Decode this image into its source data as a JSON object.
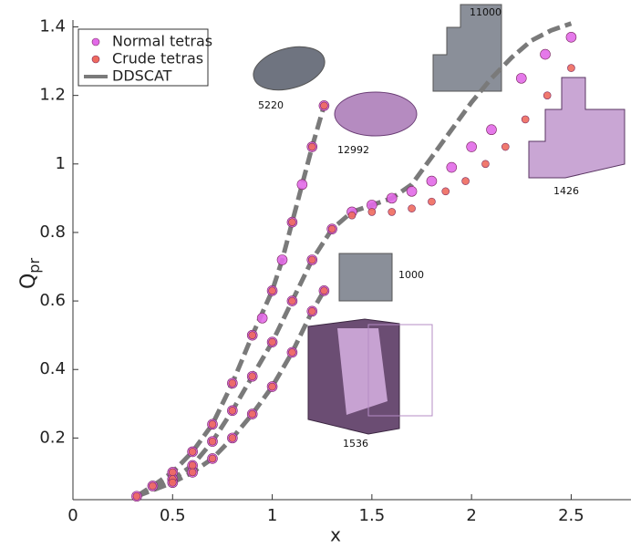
{
  "chart_data": {
    "type": "scatter-line",
    "xlabel": "x",
    "ylabel": {
      "base": "Q",
      "sub": "pr"
    },
    "xlim": [
      0,
      2.8
    ],
    "ylim": [
      0.02,
      1.42
    ],
    "xticks": [
      0,
      0.5,
      1,
      1.5,
      2,
      2.5
    ],
    "yticks": [
      0.2,
      0.4,
      0.6,
      0.8,
      1,
      1.2,
      1.4
    ],
    "legend": "upper-left",
    "annotations": [
      "5220",
      "12992",
      "11000",
      "1426",
      "1000",
      "1536"
    ],
    "series": [
      {
        "name": "Normal tetras",
        "kind": "marker",
        "color": "#e26ae8",
        "x": [
          0.32,
          0.4,
          0.5,
          0.6,
          0.7,
          0.8,
          0.9,
          0.95,
          1.0,
          1.05,
          1.1,
          1.15,
          1.2,
          1.26,
          0.5,
          0.6,
          0.7,
          0.8,
          0.9,
          1.0,
          1.1,
          1.2,
          1.3,
          1.4,
          1.5,
          1.6,
          1.7,
          1.8,
          1.9,
          2.0,
          2.1,
          2.25,
          2.37,
          2.5,
          0.5,
          0.6,
          0.7,
          0.8,
          0.9,
          1.0,
          1.1,
          1.2,
          1.26
        ],
        "values": [
          0.03,
          0.06,
          0.1,
          0.16,
          0.24,
          0.36,
          0.5,
          0.55,
          0.63,
          0.72,
          0.83,
          0.94,
          1.05,
          1.17,
          0.08,
          0.12,
          0.19,
          0.28,
          0.38,
          0.48,
          0.6,
          0.72,
          0.81,
          0.86,
          0.88,
          0.9,
          0.92,
          0.95,
          0.99,
          1.05,
          1.1,
          1.25,
          1.32,
          1.37,
          0.07,
          0.1,
          0.14,
          0.2,
          0.27,
          0.35,
          0.45,
          0.57,
          0.63
        ]
      },
      {
        "name": "Crude tetras",
        "kind": "marker",
        "color": "#ee6a5e",
        "x": [
          0.32,
          0.4,
          0.5,
          0.6,
          0.7,
          0.8,
          0.9,
          1.0,
          1.1,
          1.2,
          1.26,
          0.5,
          0.6,
          0.7,
          0.8,
          0.9,
          1.0,
          1.1,
          1.2,
          1.3,
          1.4,
          1.5,
          1.6,
          1.7,
          1.8,
          1.87,
          1.97,
          2.07,
          2.17,
          2.27,
          2.38,
          2.5,
          0.5,
          0.6,
          0.7,
          0.8,
          0.9,
          1.0,
          1.1,
          1.2,
          1.26
        ],
        "values": [
          0.03,
          0.06,
          0.1,
          0.16,
          0.24,
          0.36,
          0.5,
          0.63,
          0.83,
          1.05,
          1.17,
          0.08,
          0.12,
          0.19,
          0.28,
          0.38,
          0.48,
          0.6,
          0.72,
          0.81,
          0.85,
          0.86,
          0.86,
          0.87,
          0.89,
          0.92,
          0.95,
          1.0,
          1.05,
          1.13,
          1.2,
          1.28,
          0.07,
          0.1,
          0.14,
          0.2,
          0.27,
          0.35,
          0.45,
          0.57,
          0.63
        ]
      },
      {
        "name": "DDSCAT",
        "kind": "line",
        "color": "#7a7a7a",
        "x": [
          0.32,
          0.4,
          0.5,
          0.6,
          0.7,
          0.8,
          0.9,
          1.0,
          1.05,
          1.1,
          1.15,
          1.2,
          1.26,
          null,
          0.32,
          0.5,
          0.6,
          0.7,
          0.8,
          0.9,
          1.0,
          1.1,
          1.2,
          1.3,
          1.4,
          1.5,
          1.6,
          1.7,
          1.8,
          1.9,
          2.0,
          2.1,
          2.2,
          2.3,
          2.4,
          2.5,
          null,
          0.32,
          0.5,
          0.6,
          0.7,
          0.8,
          0.9,
          1.0,
          1.1,
          1.2,
          1.26
        ],
        "values": [
          0.03,
          0.06,
          0.1,
          0.16,
          0.24,
          0.36,
          0.5,
          0.63,
          0.72,
          0.83,
          0.94,
          1.05,
          1.17,
          null,
          0.03,
          0.08,
          0.12,
          0.19,
          0.28,
          0.38,
          0.48,
          0.6,
          0.72,
          0.81,
          0.86,
          0.88,
          0.9,
          0.94,
          1.02,
          1.1,
          1.18,
          1.25,
          1.31,
          1.36,
          1.39,
          1.41,
          null,
          0.03,
          0.07,
          0.1,
          0.14,
          0.2,
          0.27,
          0.35,
          0.45,
          0.57,
          0.63
        ]
      }
    ]
  }
}
